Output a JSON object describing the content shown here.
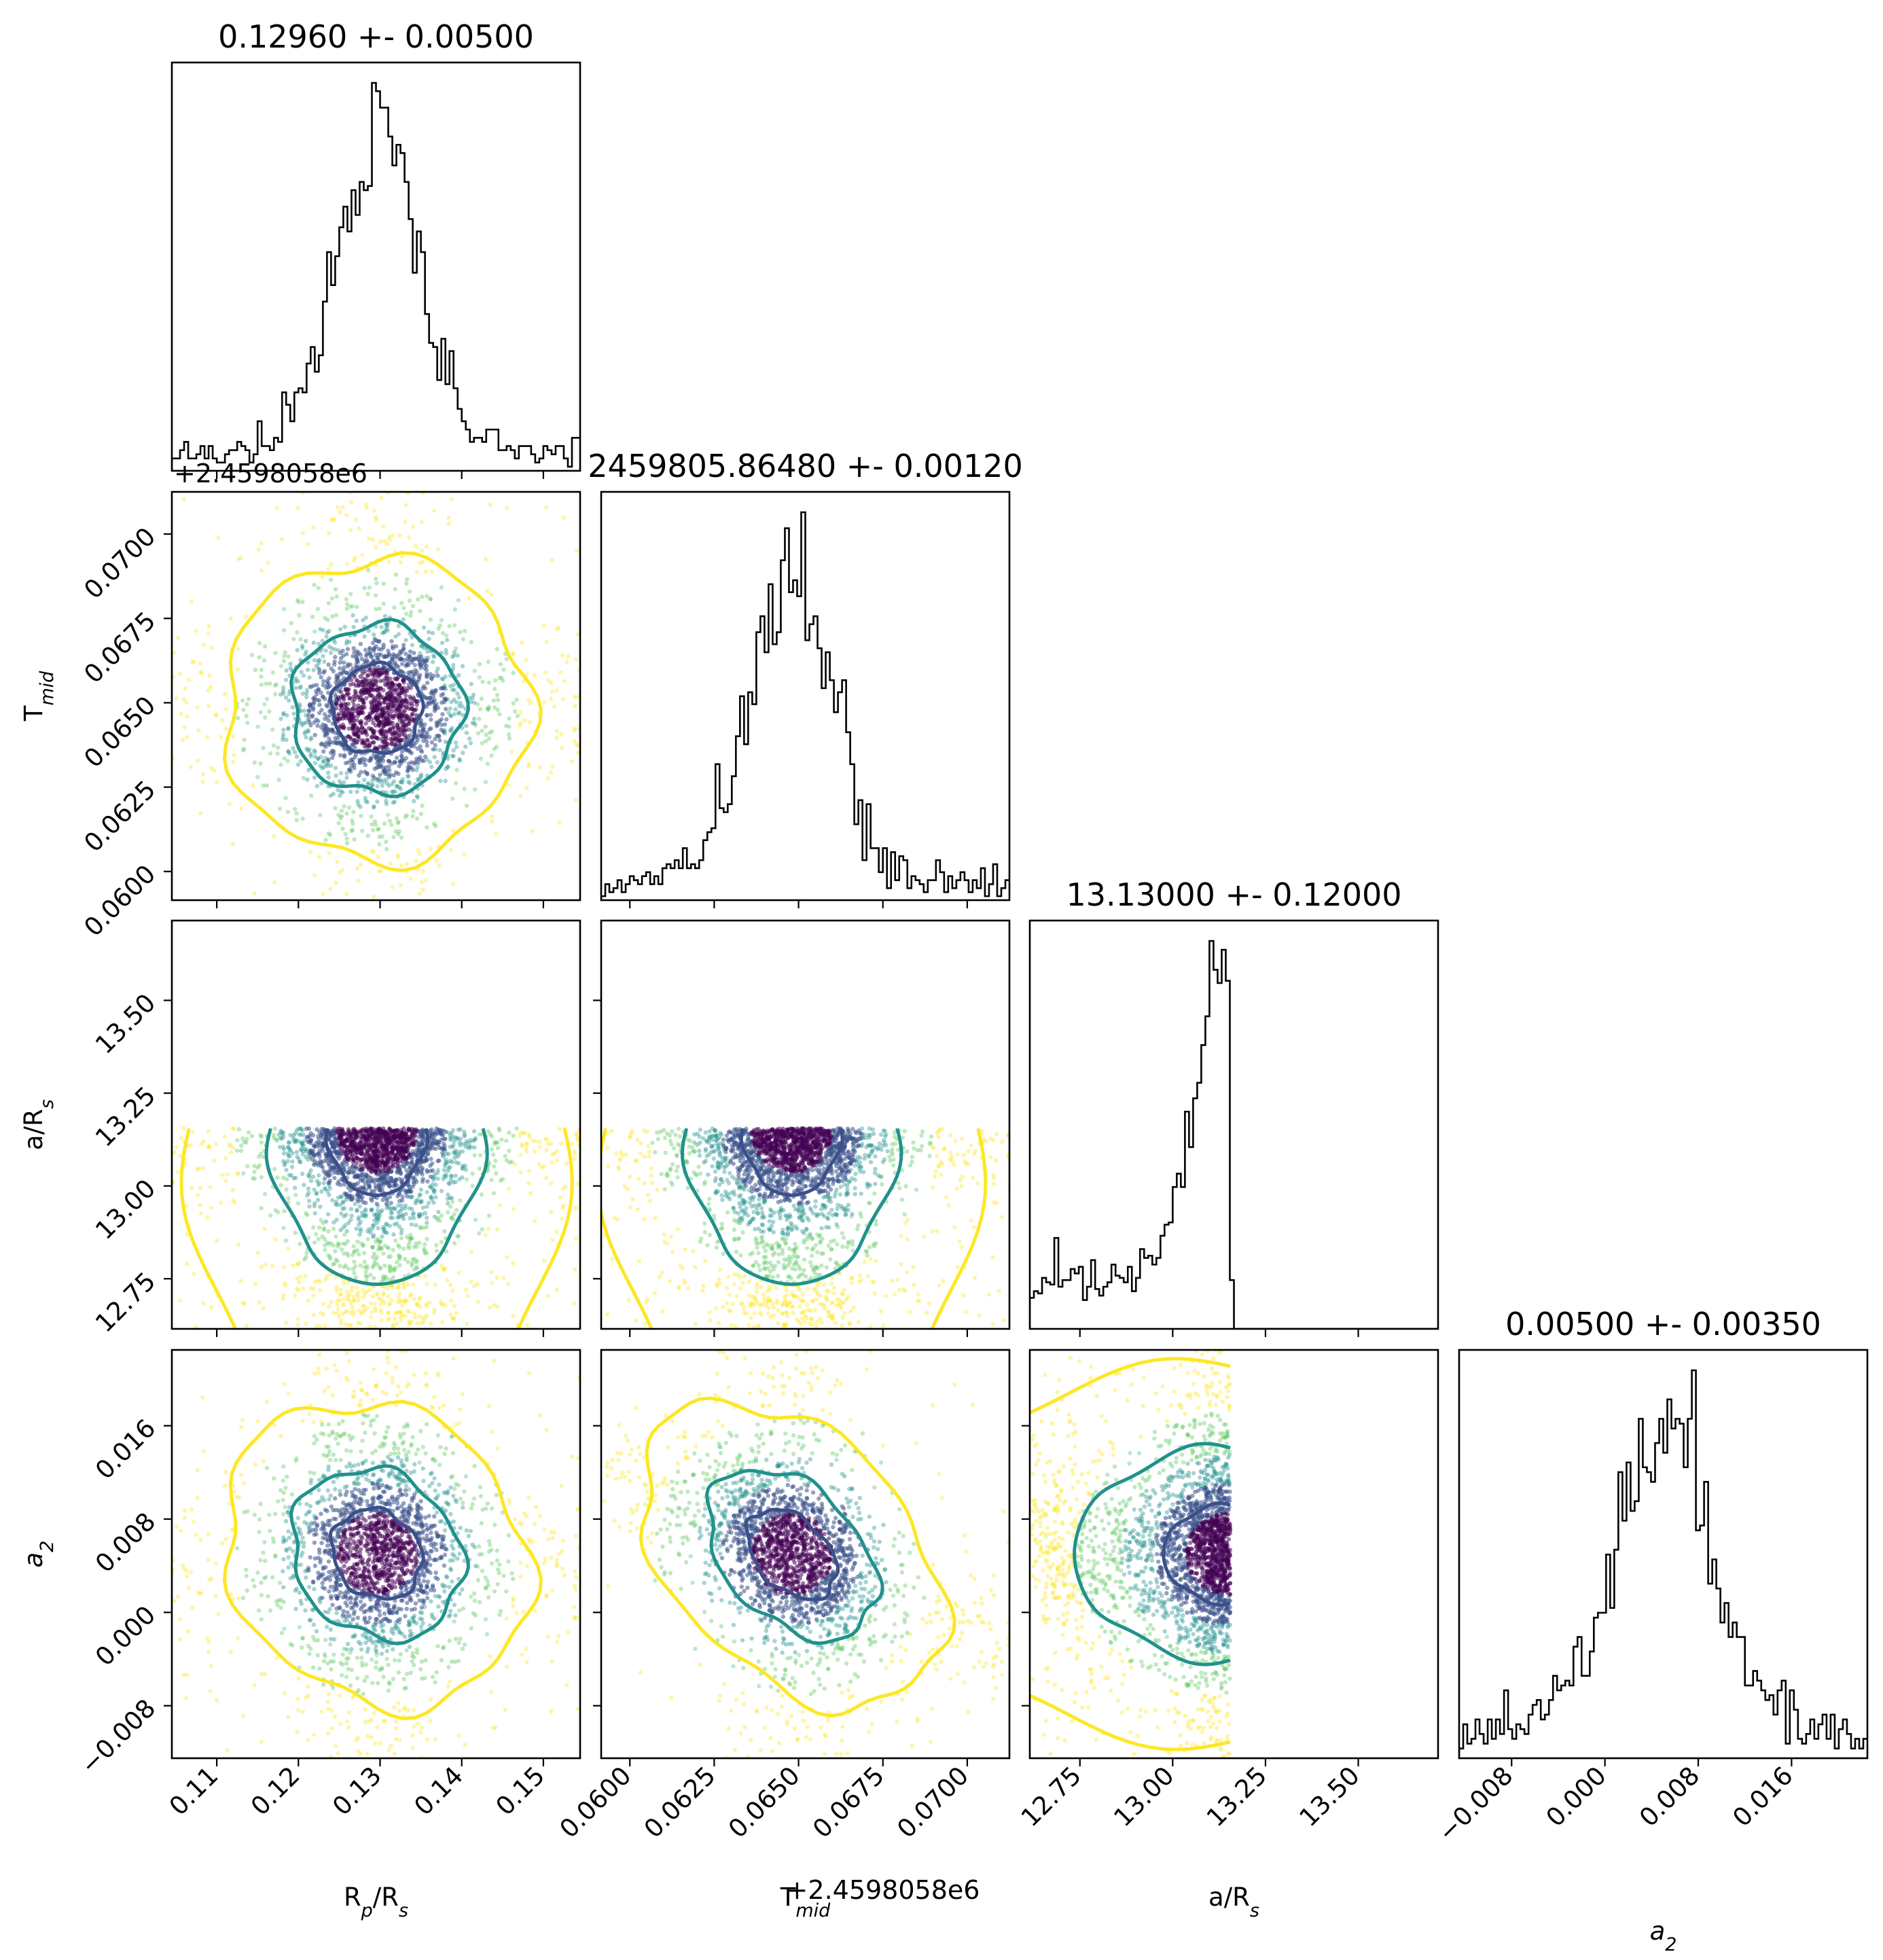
{
  "chart_data": {
    "type": "corner",
    "parameters": [
      {
        "key": "rp",
        "label": "R",
        "sub": "p",
        "label_suffix": "/R",
        "suffix_sub": "s",
        "center": 0.1296,
        "sigma": 0.005,
        "title": "0.12960 +- 0.00500",
        "range": [
          0.1045,
          0.1545
        ],
        "ticks": [
          0.11,
          0.12,
          0.13,
          0.14,
          0.15
        ],
        "tick_labels": [
          "0.11",
          "0.12",
          "0.13",
          "0.14",
          "0.15"
        ]
      },
      {
        "key": "tmid",
        "label": "T",
        "sub": "mid",
        "label_suffix": "",
        "suffix_sub": "",
        "center": 0.0648,
        "sigma": 0.0012,
        "title": "2459805.86480 +- 0.00120",
        "offset_label": "+2.4598058e6",
        "range": [
          0.05915,
          0.07125
        ],
        "ticks": [
          0.06,
          0.0625,
          0.065,
          0.0675,
          0.07
        ],
        "tick_labels": [
          "0.0600",
          "0.0625",
          "0.0650",
          "0.0675",
          "0.0700"
        ]
      },
      {
        "key": "ars",
        "label": "a/R",
        "sub": "s",
        "label_suffix": "",
        "suffix_sub": "",
        "center": 13.13,
        "sigma": 0.12,
        "title": "13.13000 +- 0.12000",
        "range": [
          12.615,
          13.715
        ],
        "ticks": [
          12.75,
          13.0,
          13.25,
          13.5
        ],
        "tick_labels": [
          "12.75",
          "13.00",
          "13.25",
          "13.50"
        ]
      },
      {
        "key": "a2",
        "label": "a",
        "sub": "2",
        "label_suffix": "",
        "suffix_sub": "",
        "italic": true,
        "center": 0.005,
        "sigma": 0.0035,
        "title": "0.00500 +- 0.00350",
        "range": [
          -0.0125,
          0.0225
        ],
        "ticks": [
          -0.008,
          0.0,
          0.008,
          0.016
        ],
        "tick_labels": [
          "−0.008",
          "0.000",
          "0.008",
          "0.016"
        ]
      }
    ],
    "contour_levels": [
      "1-sigma",
      "2-sigma",
      "3-sigma"
    ],
    "point_colormap": "viridis",
    "grid": false,
    "legend": "none"
  },
  "colors": {
    "inner_contour": "#3b4f8a",
    "middle_contour": "#21918c",
    "outer_contour": "#fde725",
    "dense_core": "#440154",
    "histogram_line": "#000000",
    "frame": "#000000"
  }
}
